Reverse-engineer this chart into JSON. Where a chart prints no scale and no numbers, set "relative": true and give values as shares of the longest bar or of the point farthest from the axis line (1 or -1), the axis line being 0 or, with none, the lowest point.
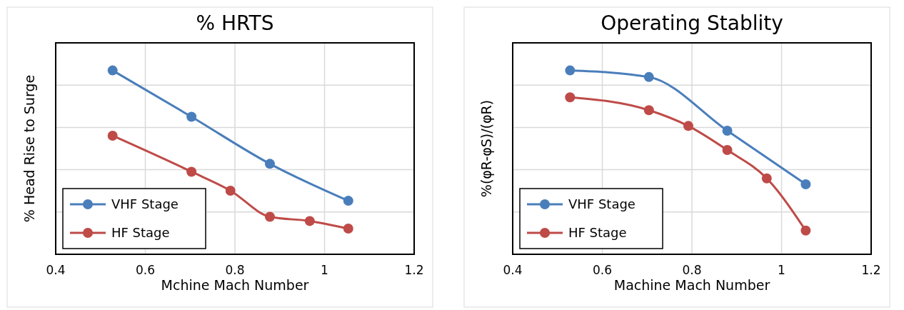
{
  "chart_data": [
    {
      "type": "line",
      "title": "% HRTS",
      "xlabel": "Mchine Mach Number",
      "ylabel": "% Head Rise to Surge",
      "relative": true,
      "xlim": [
        0.4,
        1.2
      ],
      "xticks": [
        0.4,
        0.6,
        0.8,
        1,
        1.2
      ],
      "grid": true,
      "legend": "bottom left",
      "marker": "circle",
      "series": [
        {
          "name": "VHF Stage",
          "color": "#4a7ebb",
          "x": [
            0.527,
            0.703,
            0.878,
            1.053
          ],
          "values": [
            1,
            0.748,
            0.492,
            0.291
          ]
        },
        {
          "name": "HF Stage",
          "color": "#be4b48",
          "x": [
            0.527,
            0.703,
            0.79,
            0.878,
            0.967,
            1.053
          ],
          "values": [
            0.645,
            0.449,
            0.346,
            0.204,
            0.181,
            0.14
          ]
        }
      ]
    },
    {
      "type": "line",
      "title": "Operating Stablity",
      "xlabel": "Machine Mach Number",
      "ylabel": "%(φR-φS)/(φR)",
      "relative": true,
      "xlim": [
        0.4,
        1.2
      ],
      "xticks": [
        0.4,
        0.6,
        0.8,
        1,
        1.2
      ],
      "grid": true,
      "legend": "bottom left",
      "marker": "circle",
      "series": [
        {
          "name": "VHF Stage",
          "color": "#4a7ebb",
          "x": [
            0.528,
            0.704,
            0.879,
            1.054
          ],
          "values": [
            1,
            0.964,
            0.672,
            0.381
          ]
        },
        {
          "name": "HF Stage",
          "color": "#be4b48",
          "x": [
            0.528,
            0.704,
            0.792,
            0.879,
            0.967,
            1.054
          ],
          "values": [
            0.854,
            0.784,
            0.698,
            0.567,
            0.413,
            0.129
          ]
        }
      ]
    }
  ]
}
